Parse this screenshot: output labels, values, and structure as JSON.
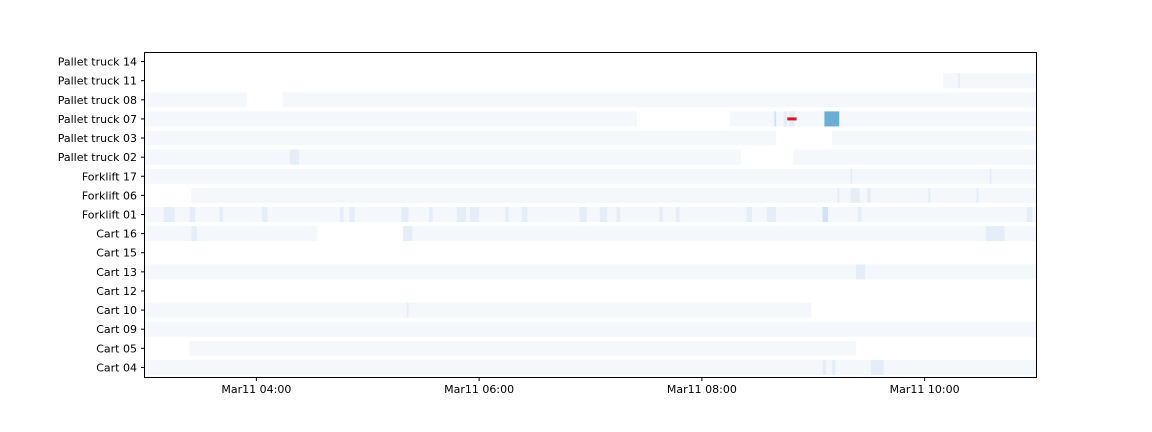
{
  "chart_data": {
    "type": "heatmap",
    "title": "",
    "xlabel": "",
    "ylabel": "",
    "x_range": [
      "2024-03-11T03:00",
      "2024-03-11T11:00"
    ],
    "x_ticks": [
      {
        "value": "2024-03-11T04:00",
        "label": "Mar11 04:00"
      },
      {
        "value": "2024-03-11T06:00",
        "label": "Mar11 06:00"
      },
      {
        "value": "2024-03-11T08:00",
        "label": "Mar11 08:00"
      },
      {
        "value": "2024-03-11T10:00",
        "label": "Mar11 10:00"
      }
    ],
    "categories": [
      "Pallet truck 14",
      "Pallet truck 11",
      "Pallet truck 08",
      "Pallet truck 07",
      "Pallet truck 03",
      "Pallet truck 02",
      "Forklift 17",
      "Forklift 06",
      "Forklift 01",
      "Cart 16",
      "Cart 15",
      "Cart 13",
      "Cart 12",
      "Cart 10",
      "Cart 09",
      "Cart 05",
      "Cart 04"
    ],
    "grid": false,
    "colors": {
      "faint": "#f4f8fd",
      "light": "#e5eef8",
      "medium": "#d2e2f2",
      "strong": "#6aaed6",
      "alert": "#d11a1a"
    },
    "rows": [
      {
        "name": "Pallet truck 14",
        "segments": []
      },
      {
        "name": "Pallet truck 11",
        "segments": [
          {
            "start": "10:10",
            "end": "11:00",
            "level": "faint"
          },
          {
            "start": "10:18",
            "end": "10:19",
            "level": "light"
          }
        ]
      },
      {
        "name": "Pallet truck 08",
        "segments": [
          {
            "start": "03:00",
            "end": "03:55",
            "level": "faint"
          },
          {
            "start": "04:14",
            "end": "11:00",
            "level": "faint"
          }
        ]
      },
      {
        "name": "Pallet truck 07",
        "segments": [
          {
            "start": "03:00",
            "end": "07:25",
            "level": "faint"
          },
          {
            "start": "08:15",
            "end": "11:00",
            "level": "faint"
          },
          {
            "start": "08:39",
            "end": "08:40",
            "level": "medium"
          },
          {
            "start": "08:44",
            "end": "08:46",
            "level": "light"
          },
          {
            "start": "08:47",
            "end": "08:50",
            "level": "light"
          },
          {
            "start": "09:06",
            "end": "09:14",
            "level": "strong"
          },
          {
            "start": "08:46",
            "end": "08:51",
            "level": "alert",
            "thin": true
          }
        ]
      },
      {
        "name": "Pallet truck 03",
        "segments": [
          {
            "start": "03:00",
            "end": "08:40",
            "level": "faint"
          },
          {
            "start": "09:10",
            "end": "11:00",
            "level": "faint"
          }
        ]
      },
      {
        "name": "Pallet truck 02",
        "segments": [
          {
            "start": "03:00",
            "end": "08:21",
            "level": "faint"
          },
          {
            "start": "04:18",
            "end": "04:23",
            "level": "light"
          },
          {
            "start": "08:49",
            "end": "11:00",
            "level": "faint"
          }
        ]
      },
      {
        "name": "Forklift 17",
        "segments": [
          {
            "start": "03:00",
            "end": "11:00",
            "level": "faint"
          },
          {
            "start": "09:20",
            "end": "09:21",
            "level": "light"
          },
          {
            "start": "10:35",
            "end": "10:36",
            "level": "light"
          }
        ]
      },
      {
        "name": "Forklift 06",
        "segments": [
          {
            "start": "03:25",
            "end": "11:00",
            "level": "faint"
          },
          {
            "start": "09:13",
            "end": "09:14",
            "level": "light"
          },
          {
            "start": "09:20",
            "end": "09:25",
            "level": "light"
          },
          {
            "start": "09:29",
            "end": "09:31",
            "level": "light"
          },
          {
            "start": "10:02",
            "end": "10:03",
            "level": "light"
          },
          {
            "start": "10:28",
            "end": "10:29",
            "level": "light"
          }
        ]
      },
      {
        "name": "Forklift 01",
        "segments": [
          {
            "start": "03:00",
            "end": "11:00",
            "level": "faint"
          },
          {
            "start": "03:10",
            "end": "03:16",
            "level": "light"
          },
          {
            "start": "03:24",
            "end": "03:27",
            "level": "light"
          },
          {
            "start": "03:40",
            "end": "03:42",
            "level": "light"
          },
          {
            "start": "04:03",
            "end": "04:06",
            "level": "light"
          },
          {
            "start": "04:45",
            "end": "04:47",
            "level": "light"
          },
          {
            "start": "04:50",
            "end": "04:53",
            "level": "light"
          },
          {
            "start": "05:18",
            "end": "05:22",
            "level": "light"
          },
          {
            "start": "05:33",
            "end": "05:35",
            "level": "light"
          },
          {
            "start": "05:48",
            "end": "05:53",
            "level": "light"
          },
          {
            "start": "05:55",
            "end": "06:00",
            "level": "light"
          },
          {
            "start": "06:14",
            "end": "06:16",
            "level": "light"
          },
          {
            "start": "06:23",
            "end": "06:26",
            "level": "light"
          },
          {
            "start": "06:54",
            "end": "06:58",
            "level": "light"
          },
          {
            "start": "07:05",
            "end": "07:09",
            "level": "light"
          },
          {
            "start": "07:14",
            "end": "07:16",
            "level": "light"
          },
          {
            "start": "07:37",
            "end": "07:39",
            "level": "light"
          },
          {
            "start": "07:46",
            "end": "07:48",
            "level": "light"
          },
          {
            "start": "08:24",
            "end": "08:27",
            "level": "light"
          },
          {
            "start": "08:35",
            "end": "08:40",
            "level": "light"
          },
          {
            "start": "09:05",
            "end": "09:08",
            "level": "medium"
          },
          {
            "start": "09:24",
            "end": "09:26",
            "level": "light"
          },
          {
            "start": "10:55",
            "end": "10:58",
            "level": "light"
          }
        ]
      },
      {
        "name": "Cart 16",
        "segments": [
          {
            "start": "03:00",
            "end": "04:33",
            "level": "faint"
          },
          {
            "start": "03:25",
            "end": "03:28",
            "level": "light"
          },
          {
            "start": "05:19",
            "end": "11:00",
            "level": "faint"
          },
          {
            "start": "05:19",
            "end": "05:24",
            "level": "light"
          },
          {
            "start": "10:33",
            "end": "10:43",
            "level": "light"
          }
        ]
      },
      {
        "name": "Cart 15",
        "segments": []
      },
      {
        "name": "Cart 13",
        "segments": [
          {
            "start": "03:00",
            "end": "11:00",
            "level": "faint"
          },
          {
            "start": "09:23",
            "end": "09:28",
            "level": "light"
          }
        ]
      },
      {
        "name": "Cart 12",
        "segments": []
      },
      {
        "name": "Cart 10",
        "segments": [
          {
            "start": "03:00",
            "end": "08:59",
            "level": "faint"
          },
          {
            "start": "05:21",
            "end": "05:22",
            "level": "light"
          }
        ]
      },
      {
        "name": "Cart 09",
        "segments": [
          {
            "start": "03:00",
            "end": "11:00",
            "level": "faint"
          }
        ]
      },
      {
        "name": "Cart 05",
        "segments": [
          {
            "start": "03:24",
            "end": "09:23",
            "level": "faint"
          }
        ]
      },
      {
        "name": "Cart 04",
        "segments": [
          {
            "start": "03:00",
            "end": "11:00",
            "level": "faint"
          },
          {
            "start": "09:05",
            "end": "09:07",
            "level": "light"
          },
          {
            "start": "09:10",
            "end": "09:12",
            "level": "light"
          },
          {
            "start": "09:31",
            "end": "09:38",
            "level": "light"
          }
        ]
      }
    ]
  }
}
